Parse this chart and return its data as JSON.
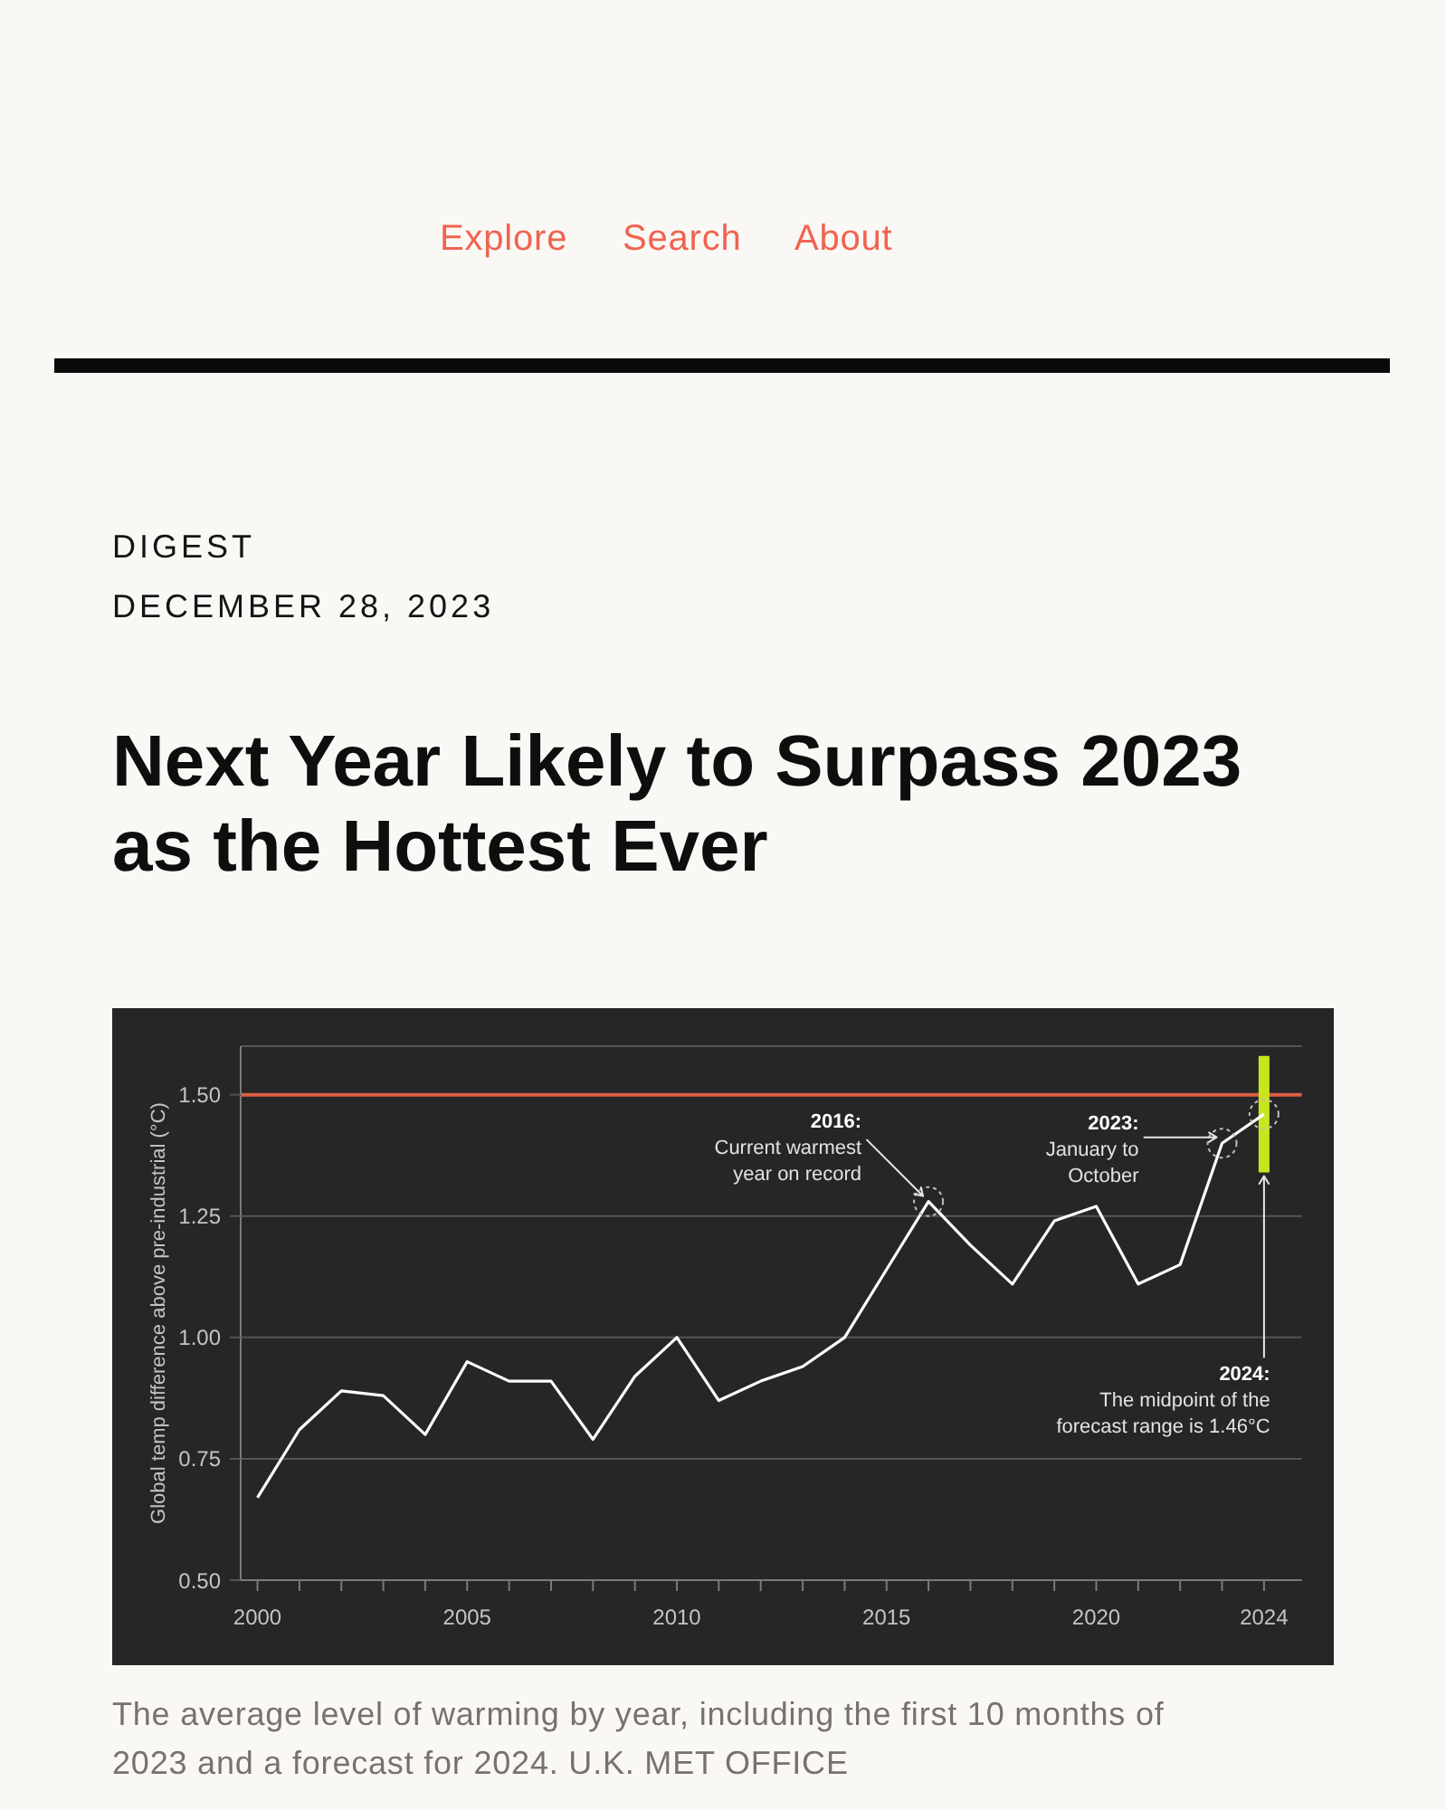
{
  "chart_data": {
    "type": "line",
    "title": "Next Year Likely to Surpass 2023 as the Hottest Ever",
    "ylabel": "Global temp difference above pre-industrial (°C)",
    "x": [
      2000,
      2001,
      2002,
      2003,
      2004,
      2005,
      2006,
      2007,
      2008,
      2009,
      2010,
      2011,
      2012,
      2013,
      2014,
      2015,
      2016,
      2017,
      2018,
      2019,
      2020,
      2021,
      2022,
      2023,
      2024
    ],
    "series": [
      {
        "color": "#ffffff",
        "values": [
          0.67,
          0.81,
          0.89,
          0.88,
          0.8,
          0.95,
          0.91,
          0.91,
          0.79,
          0.92,
          1.0,
          0.87,
          0.91,
          0.94,
          1.0,
          1.14,
          1.28,
          1.19,
          1.11,
          1.24,
          1.27,
          1.11,
          1.15,
          1.4,
          1.46
        ],
        "errors": [
          null,
          null,
          null,
          null,
          null,
          null,
          null,
          null,
          null,
          null,
          null,
          null,
          null,
          null,
          null,
          null,
          null,
          null,
          null,
          null,
          null,
          null,
          null,
          null,
          [
            1.34,
            1.58
          ]
        ]
      }
    ],
    "xlim": [
      1999.6,
      2024.9
    ],
    "xticks": [
      2000,
      {
        "value": 2001,
        "label": null
      },
      {
        "value": 2002,
        "label": null
      },
      {
        "value": 2003,
        "label": null
      },
      {
        "value": 2004,
        "label": null
      },
      2005,
      {
        "value": 2006,
        "label": null
      },
      {
        "value": 2007,
        "label": null
      },
      {
        "value": 2008,
        "label": null
      },
      {
        "value": 2009,
        "label": null
      },
      2010,
      {
        "value": 2011,
        "label": null
      },
      {
        "value": 2012,
        "label": null
      },
      {
        "value": 2013,
        "label": null
      },
      {
        "value": 2014,
        "label": null
      },
      2015,
      {
        "value": 2016,
        "label": null
      },
      {
        "value": 2017,
        "label": null
      },
      {
        "value": 2018,
        "label": null
      },
      {
        "value": 2019,
        "label": null
      },
      2020,
      {
        "value": 2021,
        "label": null
      },
      {
        "value": 2022,
        "label": null
      },
      {
        "value": 2023,
        "label": null
      },
      2024
    ],
    "ylim": [
      0.5,
      1.6
    ],
    "yticks": [
      {
        "value": 0.5,
        "label": "0.50"
      },
      {
        "value": 0.75,
        "label": "0.75"
      },
      {
        "value": 1,
        "label": "1.00"
      },
      {
        "value": 1.25,
        "label": "1.25"
      },
      {
        "value": 1.5,
        "label": "1.50"
      }
    ],
    "grid": "y",
    "ref_lines": [
      {
        "axis": "y",
        "value": 1.5,
        "color": "#dc5f45"
      }
    ],
    "annotations": [
      "Explore",
      "Search",
      "About",
      "DIGEST",
      "DECEMBER 28, 2023",
      {
        "text": "2016:\nCurrent warmest\nyear on record",
        "x": 2016,
        "y": 1.28
      },
      {
        "text": "2023:\nJanuary to\nOctober",
        "x": 2023,
        "y": 1.4
      },
      {
        "text": "2024:\nThe midpoint of the\nforecast range is 1.46°C",
        "x": 2024,
        "y": 1.34
      },
      "The average level of warming by year, including the first 10 months of 2023 and a forecast for 2024. U.K. MET OFFICE"
    ]
  }
}
